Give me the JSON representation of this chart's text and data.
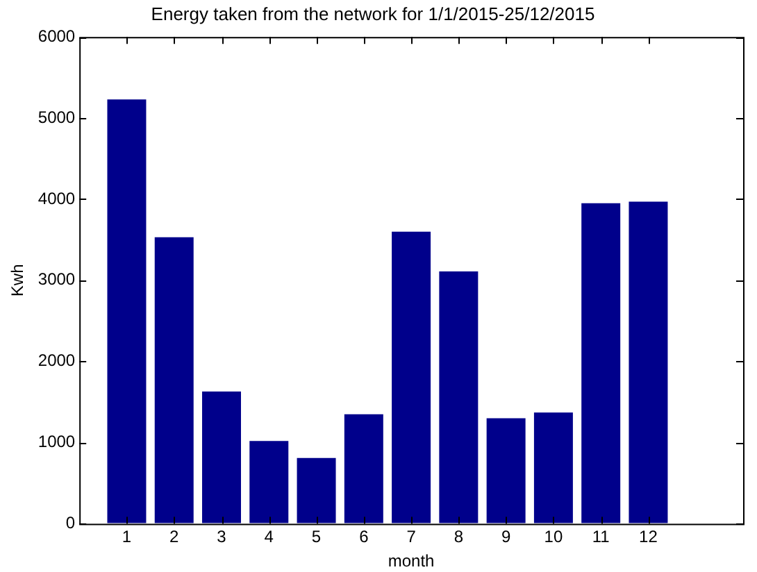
{
  "chart_data": {
    "type": "bar",
    "title": "Energy taken from the network for 1/1/2015-25/12/2015",
    "xlabel": "month",
    "ylabel": "Kwh",
    "x": [
      1,
      2,
      3,
      4,
      5,
      6,
      7,
      8,
      9,
      10,
      11,
      12
    ],
    "values": [
      5230,
      3530,
      1630,
      1020,
      810,
      1350,
      3600,
      3110,
      1300,
      1370,
      3950,
      3970
    ],
    "color": "#00008b",
    "xlim": [
      0,
      14
    ],
    "xticks": [
      1,
      2,
      3,
      4,
      5,
      6,
      7,
      8,
      9,
      10,
      11,
      12
    ],
    "ylim": [
      0,
      6000
    ],
    "yticks": [
      0,
      1000,
      2000,
      3000,
      4000,
      5000,
      6000
    ],
    "grid": false,
    "legend": false
  }
}
